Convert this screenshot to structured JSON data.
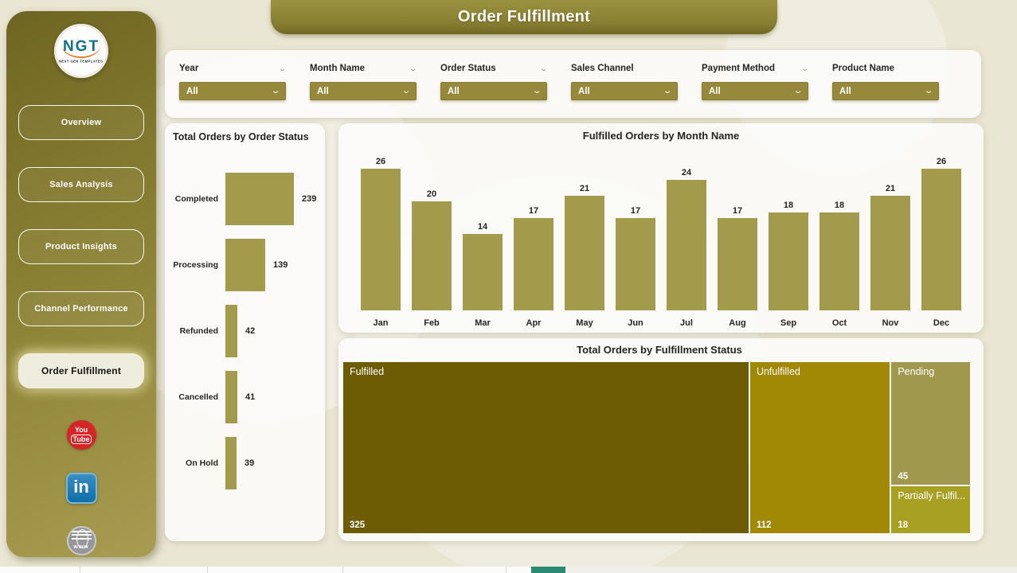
{
  "page": {
    "title": "Order Fulfillment"
  },
  "sidebar": {
    "logo": {
      "text": "NGT",
      "subtext": "NEXT GEN TEMPLATES"
    },
    "items": [
      {
        "label": "Overview",
        "active": false
      },
      {
        "label": "Sales Analysis",
        "active": false
      },
      {
        "label": "Product Insights",
        "active": false
      },
      {
        "label": "Channel Performance",
        "active": false
      },
      {
        "label": "Order Fulfillment",
        "active": true
      }
    ],
    "social": {
      "youtube": {
        "line1": "You",
        "line2": "Tube"
      },
      "linkedin": {
        "label": "in"
      },
      "website": {
        "label": "www"
      }
    }
  },
  "filters": [
    {
      "label": "Year",
      "value": "All",
      "header_chevron": true
    },
    {
      "label": "Month Name",
      "value": "All",
      "header_chevron": true
    },
    {
      "label": "Order Status",
      "value": "All",
      "header_chevron": true
    },
    {
      "label": "Sales Channel",
      "value": "All",
      "header_chevron": false
    },
    {
      "label": "Payment Method",
      "value": "All",
      "header_chevron": true
    },
    {
      "label": "Product Name",
      "value": "All",
      "header_chevron": false
    }
  ],
  "colors": {
    "accent_olive": "#97893c",
    "bar": "#a39b4b",
    "sidebar_dark": "#6e6522",
    "banner": "#877d30",
    "active_tab_teal": "#2a8b72"
  },
  "chart_data": [
    {
      "type": "bar",
      "orientation": "horizontal",
      "title": "Total Orders by Order Status",
      "categories": [
        "Completed",
        "Processing",
        "Refunded",
        "Cancelled",
        "On Hold"
      ],
      "values": [
        239,
        139,
        42,
        41,
        39
      ],
      "bar_color": "#a39b4b",
      "xlim": [
        0,
        250
      ],
      "grid": false,
      "data_labels": true
    },
    {
      "type": "bar",
      "orientation": "vertical",
      "title": "Fulfilled Orders by Month Name",
      "categories": [
        "Jan",
        "Feb",
        "Mar",
        "Apr",
        "May",
        "Jun",
        "Jul",
        "Aug",
        "Sep",
        "Oct",
        "Nov",
        "Dec"
      ],
      "values": [
        26,
        20,
        14,
        17,
        21,
        17,
        24,
        17,
        18,
        18,
        21,
        26
      ],
      "bar_color": "#a39b4b",
      "ylim": [
        0,
        26
      ],
      "grid": false,
      "data_labels": true
    },
    {
      "type": "treemap",
      "title": "Total Orders by Fulfillment Status",
      "items": [
        {
          "label": "Fulfilled",
          "value": 325,
          "color": "#6e5c04"
        },
        {
          "label": "Unfulfilled",
          "value": 112,
          "color": "#a18906"
        },
        {
          "label": "Pending",
          "value": 45,
          "color": "#a0984d"
        },
        {
          "label": "Partially Fulfil...",
          "value": 18,
          "color": "#a8a023"
        }
      ]
    }
  ]
}
